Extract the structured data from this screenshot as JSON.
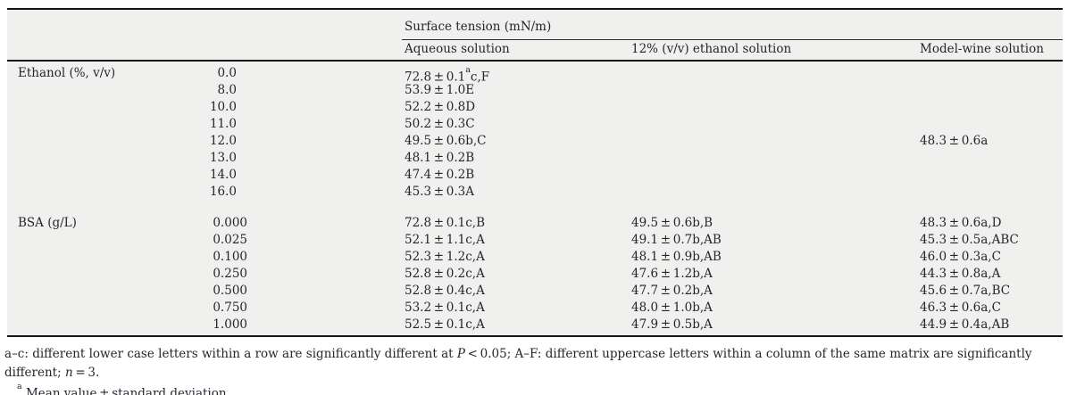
{
  "table": {
    "header": {
      "group_title": "Surface tension (mN/m)",
      "col_aqueous": "Aqueous solution",
      "col_ethanol12": "12% (v/v) ethanol solution",
      "col_modelwine": "Model-wine solution"
    },
    "ethanol": {
      "label": "Ethanol (%, v/v)",
      "rows": [
        {
          "x": "0.0",
          "aq_pre": "72.8 ± 0.1",
          "aq_sup": "a",
          "aq_post": "c,F"
        },
        {
          "x": "8.0",
          "aq": "53.9 ± 1.0E"
        },
        {
          "x": "10.0",
          "aq": "52.2 ± 0.8D"
        },
        {
          "x": "11.0",
          "aq": "50.2 ± 0.3C"
        },
        {
          "x": "12.0",
          "aq": "49.5 ± 0.6b,C",
          "mw": "48.3 ± 0.6a"
        },
        {
          "x": "13.0",
          "aq": "48.1 ± 0.2B"
        },
        {
          "x": "14.0",
          "aq": "47.4 ± 0.2B"
        },
        {
          "x": "16.0",
          "aq": "45.3 ± 0.3A"
        }
      ]
    },
    "bsa": {
      "label": "BSA (g/L)",
      "rows": [
        {
          "x": "0.000",
          "aq": "72.8 ± 0.1c,B",
          "et": "49.5 ± 0.6b,B",
          "mw": "48.3 ± 0.6a,D"
        },
        {
          "x": "0.025",
          "aq": "52.1 ± 1.1c,A",
          "et": "49.1 ± 0.7b,AB",
          "mw": "45.3 ± 0.5a,ABC"
        },
        {
          "x": "0.100",
          "aq": "52.3 ± 1.2c,A",
          "et": "48.1 ± 0.9b,AB",
          "mw": "46.0 ± 0.3a,C"
        },
        {
          "x": "0.250",
          "aq": "52.8 ± 0.2c,A",
          "et": "47.6 ± 1.2b,A",
          "mw": "44.3 ± 0.8a,A"
        },
        {
          "x": "0.500",
          "aq": "52.8 ± 0.4c,A",
          "et": "47.7 ± 0.2b,A",
          "mw": "45.6 ± 0.7a,BC"
        },
        {
          "x": "0.750",
          "aq": "53.2 ± 0.1c,A",
          "et": "48.0 ± 1.0b,A",
          "mw": "46.3 ± 0.6a,C"
        },
        {
          "x": "1.000",
          "aq": "52.5 ± 0.1c,A",
          "et": "47.9 ± 0.5b,A",
          "mw": "44.9 ± 0.4a,AB"
        }
      ]
    }
  },
  "footnotes": {
    "fn1_part1": "a–c: different lower case letters within a row are significantly different at ",
    "fn1_italic1": "P",
    "fn1_part2": " < 0.05; A–F: different uppercase letters within a column of the same matrix are significantly different; ",
    "fn1_italic2": "n",
    "fn1_part3": " = 3.",
    "fn2_sup": "a",
    "fn2_text": " Mean value ± standard deviation."
  }
}
